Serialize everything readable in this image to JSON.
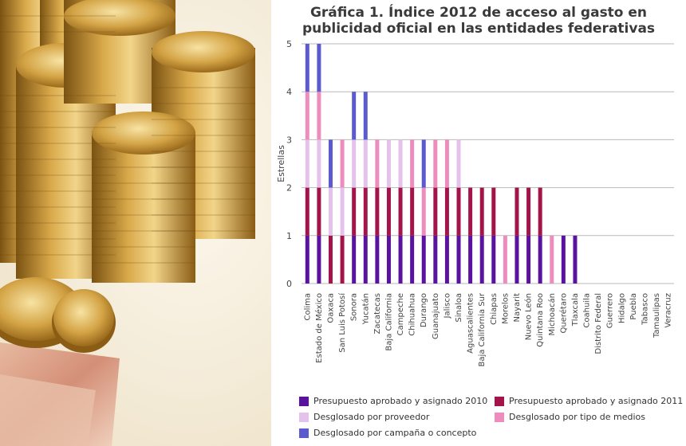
{
  "chart_data": {
    "type": "bar",
    "title_line1": "Gráfica 1. Índice 2012 de acceso al gasto en",
    "title_line2": "publicidad oficial en las entidades federativas",
    "ylabel": "Estrellas",
    "ylim": [
      0,
      5
    ],
    "yticks": [
      "0",
      "1",
      "2",
      "3",
      "4",
      "5"
    ],
    "categories": [
      "Colima",
      "Estado de México",
      "Oaxaca",
      "San Luis Potosí",
      "Sonora",
      "Yucatán",
      "Zacatecas",
      "Baja California",
      "Campeche",
      "Chihuahua",
      "Durango",
      "Guanajuato",
      "Jalisco",
      "Sinaloa",
      "Aguascalientes",
      "Baja California Sur",
      "Chiapas",
      "Morelos",
      "Nayarit",
      "Nuevo León",
      "Quintana Roo",
      "Michoacán",
      "Querétaro",
      "Tlaxcala",
      "Coahuila",
      "Distrito Federal",
      "Guerrero",
      "Hidalgo",
      "Puebla",
      "Tabasco",
      "Tamaulipas",
      "Veracruz"
    ],
    "series": [
      {
        "name": "Presupuesto aprobado y asignado 2010",
        "color": "#5a139e",
        "values": [
          1,
          1,
          0,
          0,
          1,
          1,
          1,
          1,
          1,
          1,
          1,
          1,
          1,
          1,
          1,
          1,
          1,
          0,
          1,
          1,
          1,
          0,
          1,
          1,
          0,
          0,
          0,
          0,
          0,
          0,
          0,
          0
        ]
      },
      {
        "name": "Presupuesto aprobado y asignado 2011",
        "color": "#a3154a",
        "values": [
          1,
          1,
          1,
          1,
          1,
          1,
          1,
          1,
          1,
          1,
          0,
          1,
          1,
          1,
          1,
          1,
          1,
          0,
          1,
          1,
          1,
          0,
          0,
          0,
          0,
          0,
          0,
          0,
          0,
          0,
          0,
          0
        ]
      },
      {
        "name": "Desglosado por proveedor",
        "color": "#e4c2ec",
        "values": [
          1,
          1,
          1,
          1,
          1,
          1,
          0,
          1,
          1,
          0,
          0,
          0,
          0,
          1,
          0,
          0,
          0,
          0,
          0,
          0,
          0,
          0,
          0,
          0,
          0,
          0,
          0,
          0,
          0,
          0,
          0,
          0
        ]
      },
      {
        "name": "Desglosado por tipo de medios",
        "color": "#ec8dbd",
        "values": [
          1,
          1,
          0,
          1,
          0,
          0,
          1,
          0,
          0,
          1,
          1,
          1,
          1,
          0,
          0,
          0,
          0,
          1,
          0,
          0,
          0,
          1,
          0,
          0,
          0,
          0,
          0,
          0,
          0,
          0,
          0,
          0
        ]
      },
      {
        "name": "Desglosado por campaña o concepto",
        "color": "#5b5bcf",
        "values": [
          1,
          1,
          1,
          0,
          1,
          1,
          0,
          0,
          0,
          0,
          1,
          0,
          0,
          0,
          0,
          0,
          0,
          0,
          0,
          0,
          0,
          0,
          0,
          0,
          0,
          0,
          0,
          0,
          0,
          0,
          0,
          0
        ]
      }
    ],
    "stack_order": [
      0,
      1,
      2,
      3,
      4
    ],
    "legend_position": "bottom"
  }
}
